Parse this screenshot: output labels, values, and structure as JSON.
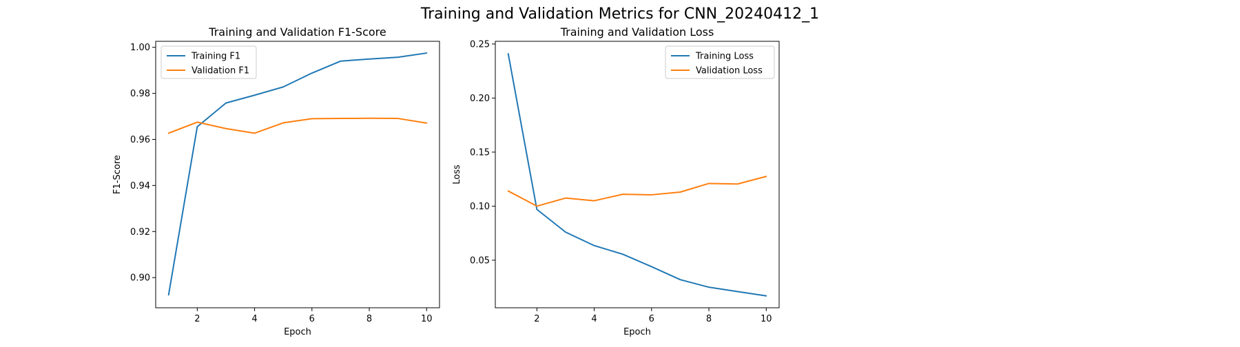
{
  "figure": {
    "title": "Training and Validation Metrics for CNN_20240412_1"
  },
  "chart_data": [
    {
      "type": "line",
      "title": "Training and Validation F1-Score",
      "xlabel": "Epoch",
      "ylabel": "F1-Score",
      "x": [
        1,
        2,
        3,
        4,
        5,
        6,
        7,
        8,
        9,
        10
      ],
      "xlim": [
        0.55,
        10.45
      ],
      "ylim": [
        0.8869,
        1.0026
      ],
      "xticks": [
        2,
        4,
        6,
        8,
        10
      ],
      "yticks": [
        0.9,
        0.92,
        0.94,
        0.96,
        0.98,
        1.0
      ],
      "ytick_labels": [
        "0.90",
        "0.92",
        "0.94",
        "0.96",
        "0.98",
        "1.00"
      ],
      "grid": false,
      "legend_position": "top-left",
      "series": [
        {
          "name": "Training F1",
          "color": "#1f77b4",
          "values": [
            0.8925,
            0.9655,
            0.9758,
            0.9792,
            0.9828,
            0.9888,
            0.994,
            0.9949,
            0.9957,
            0.9975
          ]
        },
        {
          "name": "Validation F1",
          "color": "#ff7f0e",
          "values": [
            0.9627,
            0.9675,
            0.9647,
            0.9627,
            0.9672,
            0.969,
            0.9691,
            0.9692,
            0.9691,
            0.9671
          ]
        }
      ]
    },
    {
      "type": "line",
      "title": "Training and Validation Loss",
      "xlabel": "Epoch",
      "ylabel": "Loss",
      "x": [
        1,
        2,
        3,
        4,
        5,
        6,
        7,
        8,
        9,
        10
      ],
      "xlim": [
        0.55,
        10.45
      ],
      "ylim": [
        0.006,
        0.2525
      ],
      "xticks": [
        2,
        4,
        6,
        8,
        10
      ],
      "yticks": [
        0.05,
        0.1,
        0.15,
        0.2,
        0.25
      ],
      "ytick_labels": [
        "0.05",
        "0.10",
        "0.15",
        "0.20",
        "0.25"
      ],
      "grid": false,
      "legend_position": "top-right",
      "series": [
        {
          "name": "Training Loss",
          "color": "#1f77b4",
          "values": [
            0.241,
            0.097,
            0.076,
            0.0635,
            0.0555,
            0.044,
            0.032,
            0.025,
            0.021,
            0.017
          ]
        },
        {
          "name": "Validation Loss",
          "color": "#ff7f0e",
          "values": [
            0.114,
            0.1,
            0.1075,
            0.105,
            0.111,
            0.1105,
            0.113,
            0.121,
            0.1205,
            0.1275
          ]
        }
      ]
    }
  ]
}
